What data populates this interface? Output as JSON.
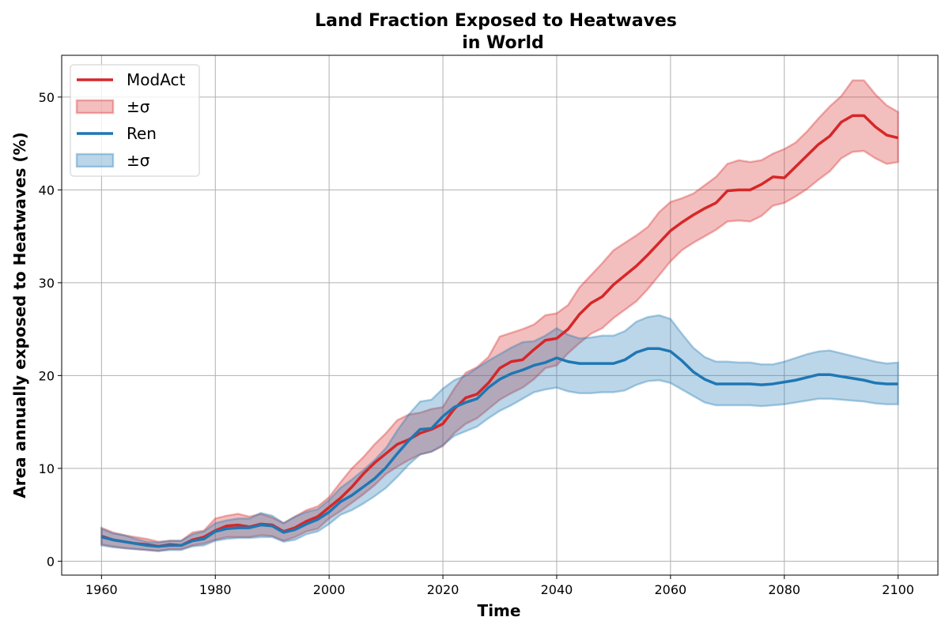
{
  "colors": {
    "modact": "#d62728",
    "ren": "#1f77b4"
  },
  "chart_data": {
    "type": "line",
    "title_line1": "Land Fraction Exposed to Heatwaves",
    "title_line2": "in World",
    "xlabel": "Time",
    "ylabel": "Area annually exposed to Heatwaves (%)",
    "xlim": [
      1953,
      2107
    ],
    "ylim": [
      -1.5,
      54.5
    ],
    "xticks": [
      1960,
      1980,
      2000,
      2020,
      2040,
      2060,
      2080,
      2100
    ],
    "yticks": [
      0,
      10,
      20,
      30,
      40,
      50
    ],
    "grid": true,
    "legend_position": "top-left",
    "legend": [
      {
        "label": "ModAct",
        "kind": "line",
        "series": "modact"
      },
      {
        "label": "±σ",
        "kind": "band",
        "series": "modact"
      },
      {
        "label": "Ren",
        "kind": "line",
        "series": "ren"
      },
      {
        "label": "±σ",
        "kind": "band",
        "series": "ren"
      }
    ],
    "series": [
      {
        "name": "ModAct",
        "key": "modact",
        "x": [
          1960,
          1962,
          1964,
          1966,
          1968,
          1970,
          1972,
          1974,
          1976,
          1978,
          1980,
          1982,
          1984,
          1986,
          1988,
          1990,
          1992,
          1994,
          1996,
          1998,
          2000,
          2002,
          2004,
          2006,
          2008,
          2010,
          2012,
          2014,
          2016,
          2018,
          2020,
          2022,
          2024,
          2026,
          2028,
          2030,
          2032,
          2034,
          2036,
          2038,
          2040,
          2042,
          2044,
          2046,
          2048,
          2050,
          2052,
          2054,
          2056,
          2058,
          2060,
          2062,
          2064,
          2066,
          2068,
          2070,
          2072,
          2074,
          2076,
          2078,
          2080,
          2082,
          2084,
          2086,
          2088,
          2090,
          2092,
          2094,
          2096,
          2098,
          2100
        ],
        "mean": [
          2.7,
          2.3,
          2.1,
          1.9,
          1.8,
          1.6,
          1.8,
          1.7,
          2.3,
          2.6,
          3.3,
          3.8,
          3.9,
          3.7,
          4.0,
          3.9,
          3.2,
          3.6,
          4.3,
          4.8,
          5.8,
          6.8,
          8.0,
          9.4,
          10.6,
          11.6,
          12.6,
          13.1,
          13.8,
          14.2,
          14.8,
          16.4,
          17.6,
          18.0,
          19.2,
          20.8,
          21.5,
          21.7,
          22.8,
          23.8,
          24.0,
          25.0,
          26.6,
          27.8,
          28.5,
          29.8,
          30.8,
          31.8,
          33.0,
          34.3,
          35.6,
          36.5,
          37.3,
          38.0,
          38.6,
          39.9,
          40.0,
          40.0,
          40.6,
          41.4,
          41.3,
          42.5,
          43.7,
          44.9,
          45.8,
          47.3,
          48.0,
          48.0,
          46.8,
          45.9,
          45.6
        ],
        "upper": [
          3.6,
          3.1,
          2.8,
          2.6,
          2.4,
          2.1,
          2.2,
          2.2,
          3.1,
          3.3,
          4.6,
          4.9,
          5.1,
          4.8,
          5.1,
          4.7,
          4.1,
          4.8,
          5.5,
          5.9,
          6.9,
          8.5,
          10.0,
          11.2,
          12.6,
          13.8,
          15.2,
          15.8,
          16.0,
          16.4,
          16.6,
          18.6,
          20.3,
          20.9,
          22.0,
          24.2,
          24.6,
          25.0,
          25.5,
          26.5,
          26.7,
          27.6,
          29.5,
          30.8,
          32.1,
          33.5,
          34.3,
          35.1,
          36.0,
          37.6,
          38.7,
          39.1,
          39.6,
          40.5,
          41.4,
          42.8,
          43.2,
          43.0,
          43.2,
          43.9,
          44.4,
          45.1,
          46.3,
          47.7,
          49.0,
          50.1,
          51.8,
          51.8,
          50.3,
          49.1,
          48.4
        ],
        "lower": [
          1.8,
          1.6,
          1.4,
          1.3,
          1.2,
          1.1,
          1.3,
          1.3,
          1.7,
          1.9,
          2.3,
          2.6,
          2.6,
          2.6,
          2.8,
          2.7,
          2.2,
          2.6,
          3.2,
          3.5,
          4.6,
          5.4,
          6.3,
          7.2,
          8.2,
          9.4,
          10.2,
          10.9,
          11.5,
          11.8,
          12.4,
          13.8,
          14.8,
          15.4,
          16.4,
          17.4,
          18.1,
          18.7,
          19.6,
          20.8,
          21.1,
          22.4,
          23.5,
          24.5,
          25.1,
          26.2,
          27.1,
          28.0,
          29.3,
          30.8,
          32.3,
          33.5,
          34.3,
          35.0,
          35.7,
          36.6,
          36.7,
          36.6,
          37.2,
          38.3,
          38.6,
          39.3,
          40.1,
          41.1,
          42.0,
          43.4,
          44.1,
          44.2,
          43.4,
          42.8,
          43.0
        ]
      },
      {
        "name": "Ren",
        "key": "ren",
        "x": [
          1960,
          1962,
          1964,
          1966,
          1968,
          1970,
          1972,
          1974,
          1976,
          1978,
          1980,
          1982,
          1984,
          1986,
          1988,
          1990,
          1992,
          1994,
          1996,
          1998,
          2000,
          2002,
          2004,
          2006,
          2008,
          2010,
          2012,
          2014,
          2016,
          2018,
          2020,
          2022,
          2024,
          2026,
          2028,
          2030,
          2032,
          2034,
          2036,
          2038,
          2040,
          2042,
          2044,
          2046,
          2048,
          2050,
          2052,
          2054,
          2056,
          2058,
          2060,
          2062,
          2064,
          2066,
          2068,
          2070,
          2072,
          2074,
          2076,
          2078,
          2080,
          2082,
          2084,
          2086,
          2088,
          2090,
          2092,
          2094,
          2096,
          2098,
          2100
        ],
        "mean": [
          2.6,
          2.3,
          2.1,
          1.9,
          1.7,
          1.6,
          1.7,
          1.7,
          2.2,
          2.4,
          3.2,
          3.5,
          3.6,
          3.6,
          3.9,
          3.8,
          3.1,
          3.4,
          4.0,
          4.5,
          5.3,
          6.4,
          7.1,
          8.0,
          8.9,
          10.1,
          11.6,
          13.0,
          14.2,
          14.3,
          15.6,
          16.6,
          17.1,
          17.5,
          18.7,
          19.6,
          20.2,
          20.6,
          21.1,
          21.4,
          21.9,
          21.5,
          21.3,
          21.3,
          21.3,
          21.3,
          21.7,
          22.5,
          22.9,
          22.9,
          22.6,
          21.6,
          20.4,
          19.6,
          19.1,
          19.1,
          19.1,
          19.1,
          19.0,
          19.1,
          19.3,
          19.5,
          19.8,
          20.1,
          20.1,
          19.9,
          19.7,
          19.5,
          19.2,
          19.1,
          19.1
        ],
        "upper": [
          3.5,
          3.0,
          2.8,
          2.4,
          2.1,
          2.0,
          2.2,
          2.2,
          2.9,
          3.2,
          4.1,
          4.4,
          4.6,
          4.6,
          5.2,
          4.9,
          4.1,
          4.8,
          5.3,
          5.6,
          6.6,
          7.9,
          8.8,
          9.8,
          10.9,
          12.2,
          14.1,
          15.8,
          17.2,
          17.4,
          18.6,
          19.5,
          20.0,
          20.8,
          21.6,
          22.3,
          23.0,
          23.6,
          23.7,
          24.3,
          25.1,
          24.4,
          24.0,
          24.1,
          24.3,
          24.3,
          24.8,
          25.8,
          26.3,
          26.5,
          26.1,
          24.5,
          23.0,
          22.0,
          21.5,
          21.5,
          21.4,
          21.4,
          21.2,
          21.2,
          21.5,
          21.9,
          22.3,
          22.6,
          22.7,
          22.4,
          22.1,
          21.8,
          21.5,
          21.3,
          21.4
        ],
        "lower": [
          1.7,
          1.5,
          1.4,
          1.3,
          1.2,
          1.1,
          1.2,
          1.2,
          1.6,
          1.7,
          2.2,
          2.4,
          2.5,
          2.5,
          2.6,
          2.6,
          2.1,
          2.3,
          2.9,
          3.2,
          4.0,
          5.0,
          5.5,
          6.2,
          7.0,
          7.9,
          9.1,
          10.4,
          11.5,
          11.8,
          12.5,
          13.5,
          14.0,
          14.5,
          15.4,
          16.2,
          16.8,
          17.5,
          18.2,
          18.5,
          18.7,
          18.3,
          18.1,
          18.1,
          18.2,
          18.2,
          18.4,
          19.0,
          19.4,
          19.5,
          19.2,
          18.5,
          17.8,
          17.1,
          16.8,
          16.8,
          16.8,
          16.8,
          16.7,
          16.8,
          16.9,
          17.1,
          17.3,
          17.5,
          17.5,
          17.4,
          17.3,
          17.2,
          17.0,
          16.9,
          16.9
        ]
      }
    ]
  }
}
